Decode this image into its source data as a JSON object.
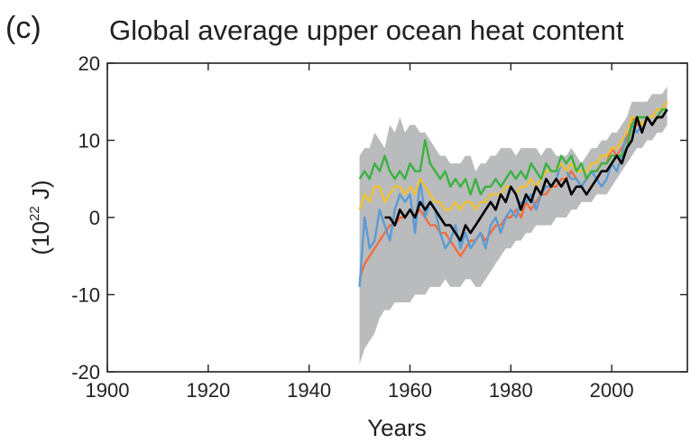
{
  "chart_data": {
    "type": "line",
    "panel_label": "(c)",
    "title": "Global average upper ocean heat content",
    "xlabel": "Years",
    "ylabel_base": "(10",
    "ylabel_exp": "22",
    "ylabel_unit": " J)",
    "xlim": [
      1900,
      2015
    ],
    "ylim": [
      -20,
      20
    ],
    "xticks": [
      1900,
      1920,
      1940,
      1960,
      1980,
      2000
    ],
    "yticks": [
      20,
      10,
      0,
      -10,
      -20
    ],
    "grid": false,
    "legend": "none",
    "uncertainty_band": {
      "x": [
        1950,
        1951,
        1952,
        1953,
        1954,
        1955,
        1956,
        1957,
        1958,
        1959,
        1960,
        1961,
        1962,
        1963,
        1964,
        1965,
        1966,
        1967,
        1968,
        1969,
        1970,
        1971,
        1972,
        1973,
        1974,
        1975,
        1976,
        1977,
        1978,
        1979,
        1980,
        1981,
        1982,
        1983,
        1984,
        1985,
        1986,
        1987,
        1988,
        1989,
        1990,
        1991,
        1992,
        1993,
        1994,
        1995,
        1996,
        1997,
        1998,
        1999,
        2000,
        2001,
        2002,
        2003,
        2004,
        2005,
        2006,
        2007,
        2008,
        2009,
        2010,
        2011
      ],
      "upper": [
        8,
        9,
        9,
        11,
        10,
        9,
        12,
        11,
        13,
        11,
        12,
        12,
        11,
        11,
        10,
        9,
        8,
        8,
        7,
        7,
        7,
        8,
        8,
        6,
        7,
        7,
        8,
        8,
        9,
        9,
        9,
        8,
        9,
        9,
        9,
        9,
        8,
        9,
        9,
        8,
        8,
        8,
        9,
        8,
        7,
        8,
        9,
        9,
        10,
        10,
        11,
        11,
        12,
        13,
        15,
        15,
        15,
        15,
        16,
        16,
        16,
        17
      ],
      "lower": [
        -19,
        -17,
        -16,
        -15,
        -13,
        -12,
        -12,
        -11,
        -11,
        -11,
        -11,
        -10,
        -10,
        -10,
        -9,
        -9,
        -9,
        -8,
        -9,
        -9,
        -9,
        -8,
        -8,
        -9,
        -9,
        -8,
        -7,
        -6,
        -5,
        -4,
        -4,
        -3,
        -3,
        -2,
        -2,
        -1,
        -1,
        -1,
        -1,
        0,
        0,
        0,
        1,
        1,
        2,
        2,
        2,
        3,
        3,
        3,
        4,
        5,
        6,
        7,
        8,
        9,
        9,
        10,
        10,
        11,
        11,
        12
      ]
    },
    "series": [
      {
        "color": "#f26d3d",
        "x": [
          1950,
          1951,
          1952,
          1953,
          1954,
          1955,
          1956,
          1957,
          1958,
          1959,
          1960,
          1961,
          1962,
          1963,
          1964,
          1965,
          1966,
          1967,
          1968,
          1969,
          1970,
          1971,
          1972,
          1973,
          1974,
          1975,
          1976,
          1977,
          1978,
          1979,
          1980,
          1981,
          1982,
          1983,
          1984,
          1985,
          1986,
          1987,
          1988,
          1989,
          1990,
          1991,
          1992,
          1993,
          1994,
          1995,
          1996,
          1997,
          1998,
          1999,
          2000,
          2001,
          2002,
          2003,
          2004,
          2005,
          2006,
          2007,
          2008,
          2009,
          2010,
          2011
        ],
        "values": [
          -8,
          -6,
          -5,
          -4,
          -3,
          -2,
          -1,
          -1,
          0,
          0,
          1,
          0,
          1,
          0,
          -1,
          -1,
          -2,
          -2,
          -3,
          -4,
          -5,
          -4,
          -3,
          -3,
          -2,
          -3,
          -2,
          -1,
          -1,
          0,
          0,
          1,
          0,
          2,
          1,
          2,
          3,
          3,
          4,
          4,
          5,
          5,
          6,
          5,
          4,
          5,
          6,
          6,
          7,
          7,
          9,
          8,
          9,
          10,
          13,
          12,
          12,
          13,
          13,
          14,
          14,
          15
        ]
      },
      {
        "color": "#5b9bd5",
        "x": [
          1950,
          1951,
          1952,
          1953,
          1954,
          1955,
          1956,
          1957,
          1958,
          1959,
          1960,
          1961,
          1962,
          1963,
          1964,
          1965,
          1966,
          1967,
          1968,
          1969,
          1970,
          1971,
          1972,
          1973,
          1974,
          1975,
          1976,
          1977,
          1978,
          1979,
          1980,
          1981,
          1982,
          1983,
          1984,
          1985,
          1986,
          1987,
          1988,
          1989,
          1990,
          1991,
          1992,
          1993,
          1994,
          1995,
          1996,
          1997,
          1998,
          1999,
          2000,
          2001,
          2002,
          2003,
          2004,
          2005,
          2006,
          2007,
          2008,
          2009,
          2010,
          2011
        ],
        "values": [
          -9,
          0,
          -4,
          -3,
          1,
          -1,
          -3,
          1,
          3,
          2,
          3,
          -2,
          5,
          0,
          2,
          1,
          -2,
          -4,
          -3,
          -1,
          -4,
          -2,
          -4,
          -3,
          -2,
          -4,
          -1,
          0,
          -2,
          0,
          1,
          0,
          2,
          2,
          3,
          1,
          3,
          4,
          4,
          5,
          7,
          6,
          5,
          5,
          4,
          5,
          6,
          5,
          4,
          5,
          7,
          6,
          8,
          11,
          12,
          11,
          12,
          13,
          12,
          13,
          14,
          15
        ]
      },
      {
        "color": "#f2c12e",
        "x": [
          1950,
          1951,
          1952,
          1953,
          1954,
          1955,
          1956,
          1957,
          1958,
          1959,
          1960,
          1961,
          1962,
          1963,
          1964,
          1965,
          1966,
          1967,
          1968,
          1969,
          1970,
          1971,
          1972,
          1973,
          1974,
          1975,
          1976,
          1977,
          1978,
          1979,
          1980,
          1981,
          1982,
          1983,
          1984,
          1985,
          1986,
          1987,
          1988,
          1989,
          1990,
          1991,
          1992,
          1993,
          1994,
          1995,
          1996,
          1997,
          1998,
          1999,
          2000,
          2001,
          2002,
          2003,
          2004,
          2005,
          2006,
          2007,
          2008,
          2009,
          2010,
          2011
        ],
        "values": [
          1,
          3,
          2,
          4,
          4,
          2,
          3,
          4,
          4,
          3,
          4,
          3,
          5,
          4,
          3,
          2,
          2,
          1,
          1,
          2,
          1,
          2,
          2,
          1,
          2,
          2,
          3,
          3,
          3,
          4,
          4,
          3,
          4,
          4,
          5,
          4,
          5,
          6,
          6,
          6,
          7,
          6,
          7,
          6,
          6,
          6,
          7,
          7,
          8,
          8,
          9,
          9,
          10,
          11,
          13,
          13,
          12,
          13,
          13,
          14,
          14,
          15
        ]
      },
      {
        "color": "#3bb33f",
        "x": [
          1950,
          1951,
          1952,
          1953,
          1954,
          1955,
          1956,
          1957,
          1958,
          1959,
          1960,
          1961,
          1962,
          1963,
          1964,
          1965,
          1966,
          1967,
          1968,
          1969,
          1970,
          1971,
          1972,
          1973,
          1974,
          1975,
          1976,
          1977,
          1978,
          1979,
          1980,
          1981,
          1982,
          1983,
          1984,
          1985,
          1986,
          1987,
          1988,
          1989,
          1990,
          1991,
          1992,
          1993,
          1994,
          1995,
          1996,
          1997,
          1998,
          1999,
          2000,
          2001,
          2002,
          2003,
          2004,
          2005,
          2006,
          2007,
          2008,
          2009,
          2010,
          2011
        ],
        "values": [
          5,
          6,
          5,
          7,
          6,
          8,
          6,
          5,
          6,
          5,
          7,
          6,
          6,
          10,
          7,
          6,
          5,
          6,
          4,
          5,
          4,
          5,
          3,
          5,
          3,
          4,
          4,
          5,
          4,
          5,
          6,
          5,
          6,
          5,
          7,
          6,
          5,
          7,
          6,
          6,
          8,
          7,
          8,
          6,
          7,
          5,
          6,
          6,
          7,
          7,
          8,
          8,
          8,
          9,
          12,
          13,
          13,
          13,
          12,
          13,
          14,
          14
        ]
      },
      {
        "color": "#000000",
        "x": [
          1955,
          1956,
          1957,
          1958,
          1959,
          1960,
          1961,
          1962,
          1963,
          1964,
          1965,
          1966,
          1967,
          1968,
          1969,
          1970,
          1971,
          1972,
          1973,
          1974,
          1975,
          1976,
          1977,
          1978,
          1979,
          1980,
          1981,
          1982,
          1983,
          1984,
          1985,
          1986,
          1987,
          1988,
          1989,
          1990,
          1991,
          1992,
          1993,
          1994,
          1995,
          1996,
          1997,
          1998,
          1999,
          2000,
          2001,
          2002,
          2003,
          2004,
          2005,
          2006,
          2007,
          2008,
          2009,
          2010,
          2011
        ],
        "values": [
          0,
          0,
          -1,
          1,
          0,
          1,
          0,
          2,
          1,
          2,
          1,
          0,
          -1,
          -1,
          -2,
          -3,
          -1,
          -2,
          -1,
          0,
          1,
          2,
          1,
          3,
          2,
          4,
          3,
          1,
          3,
          2,
          4,
          3,
          5,
          4,
          5,
          4,
          5,
          3,
          4,
          4,
          3,
          4,
          5,
          6,
          6,
          7,
          8,
          7,
          9,
          10,
          13,
          11,
          13,
          12,
          13,
          13,
          14
        ]
      }
    ]
  }
}
